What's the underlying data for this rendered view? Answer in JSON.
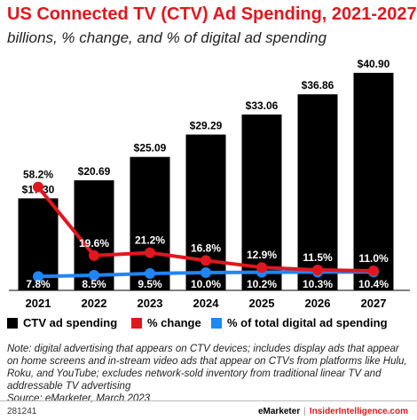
{
  "title": "US Connected TV (CTV) Ad Spending, 2021-2027",
  "subtitle": "billions, % change, and % of digital ad spending",
  "chart_data": {
    "type": "bar",
    "categories": [
      "2021",
      "2022",
      "2023",
      "2024",
      "2025",
      "2026",
      "2027"
    ],
    "series": [
      {
        "name": "CTV ad spending",
        "type": "bar",
        "values": [
          17.3,
          20.69,
          25.09,
          29.29,
          33.06,
          36.86,
          40.9
        ],
        "labels": [
          "$17.30",
          "$20.69",
          "$25.09",
          "$29.29",
          "$33.06",
          "$36.86",
          "$40.90"
        ],
        "color": "#000000"
      },
      {
        "name": "% change",
        "type": "line",
        "values": [
          58.2,
          19.6,
          21.2,
          16.8,
          12.9,
          11.5,
          11.0
        ],
        "labels": [
          "58.2%",
          "19.6%",
          "21.2%",
          "16.8%",
          "12.9%",
          "11.5%",
          "11.0%"
        ],
        "color": "#e0171f"
      },
      {
        "name": "% of total digital ad spending",
        "type": "line",
        "values": [
          7.8,
          8.5,
          9.5,
          10.0,
          10.2,
          10.3,
          10.4
        ],
        "labels": [
          "7.8%",
          "8.5%",
          "9.5%",
          "10.0%",
          "10.2%",
          "10.3%",
          "10.4%"
        ],
        "color": "#1f86f5"
      }
    ],
    "legend_position": "bottom",
    "grid": false
  },
  "legend": {
    "bar": "CTV ad spending",
    "change": "% change",
    "share": "% of total digital ad spending"
  },
  "note": "Note: digital advertising that appears on CTV devices; includes display ads that appear on home screens and in-stream video ads that appear on CTVs from platforms like Hulu, Roku, and YouTube; excludes network-sold inventory from traditional linear TV and addressable TV advertising",
  "source": "Source: eMarketer, March 2023",
  "footer": {
    "id": "281241",
    "brand": "eMarketer",
    "site": "InsiderIntelligence.com"
  },
  "colors": {
    "accent": "#e0171f",
    "bar": "#000000",
    "share_line": "#1f86f5"
  }
}
